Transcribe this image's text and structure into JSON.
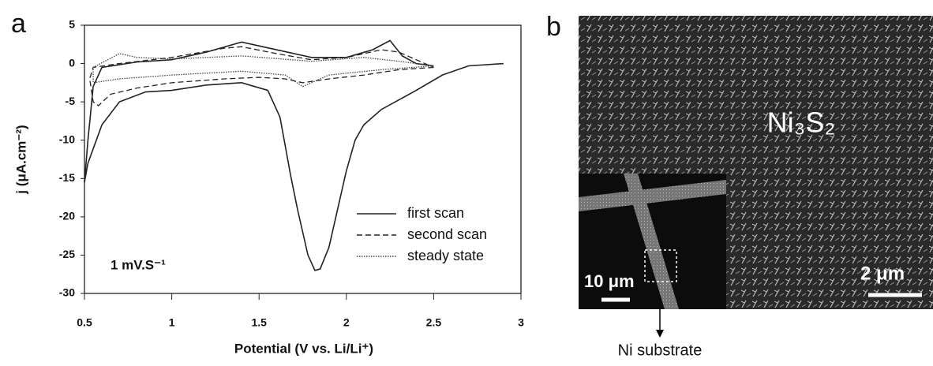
{
  "chart_data": {
    "type": "line",
    "panel_label": "a",
    "xlabel": "Potential (V vs. Li/Li⁺)",
    "ylabel": "j (μA.cm⁻²)",
    "annotation": "1 mV.S⁻¹",
    "xlim": [
      0.5,
      3
    ],
    "xticks": [
      0.5,
      1,
      1.5,
      2,
      2.5,
      3
    ],
    "ylim": [
      -30,
      5
    ],
    "yticks": [
      -30,
      -25,
      -20,
      -15,
      -10,
      -5,
      0,
      5
    ],
    "grid": false,
    "legend": "lower right",
    "series": [
      {
        "name": "first scan",
        "color": "#222222",
        "linestyle": "solid",
        "x": [
          2.9,
          2.7,
          2.55,
          2.4,
          2.2,
          2.1,
          2.05,
          2.0,
          1.95,
          1.9,
          1.85,
          1.82,
          1.78,
          1.72,
          1.68,
          1.62,
          1.55,
          1.4,
          1.2,
          1.0,
          0.85,
          0.7,
          0.6,
          0.52,
          0.5,
          0.52,
          0.55,
          0.6,
          0.8,
          1.0,
          1.2,
          1.4,
          1.6,
          1.8,
          2.0,
          2.15,
          2.25,
          2.32,
          2.4,
          2.5
        ],
        "values": [
          0,
          -0.3,
          -1.5,
          -3.5,
          -6,
          -8,
          -10,
          -14,
          -19,
          -24,
          -26.8,
          -27,
          -25,
          -19,
          -14.5,
          -7,
          -3.5,
          -2.5,
          -2.8,
          -3.5,
          -3.7,
          -5,
          -8,
          -13,
          -15.5,
          -10,
          -3,
          -0.5,
          0.2,
          0.5,
          1.5,
          2.8,
          1.8,
          0.8,
          0.8,
          1.8,
          3,
          1,
          0,
          -0.3
        ]
      },
      {
        "name": "second scan",
        "color": "#222222",
        "linestyle": "dashed",
        "x": [
          2.5,
          2.3,
          2.1,
          1.9,
          1.75,
          1.65,
          1.5,
          1.3,
          1.0,
          0.8,
          0.65,
          0.58,
          0.55,
          0.53,
          0.55,
          0.7,
          1.0,
          1.3,
          1.4,
          1.6,
          1.8,
          2.0,
          2.2,
          2.3,
          2.45,
          2.5
        ],
        "values": [
          -0.5,
          -0.8,
          -1.5,
          -2.0,
          -2.5,
          -2,
          -1.8,
          -2,
          -2.5,
          -3.2,
          -4,
          -5.5,
          -5,
          -2,
          -0.5,
          0,
          0.8,
          2,
          2.2,
          1.3,
          0.5,
          0.8,
          1.8,
          1.5,
          0,
          -0.5
        ]
      },
      {
        "name": "steady state",
        "color": "#444444",
        "linestyle": "dotted",
        "x": [
          2.5,
          2.2,
          1.9,
          1.75,
          1.65,
          1.4,
          1.0,
          0.7,
          0.55,
          0.55,
          0.7,
          0.8,
          1.0,
          1.4,
          1.8,
          2.1,
          2.3,
          2.5
        ],
        "values": [
          -0.3,
          -0.8,
          -1.5,
          -3,
          -1.5,
          -1,
          -1.5,
          -2,
          -2.5,
          -0.5,
          1.3,
          0.8,
          0.6,
          1,
          0.3,
          0.8,
          0.3,
          -0.3
        ]
      }
    ]
  },
  "panel_b": {
    "panel_label": "b",
    "material": "Ni₃S₂",
    "scale_main": "2 μm",
    "scale_inset": "10 μm",
    "callout": "Ni substrate"
  }
}
